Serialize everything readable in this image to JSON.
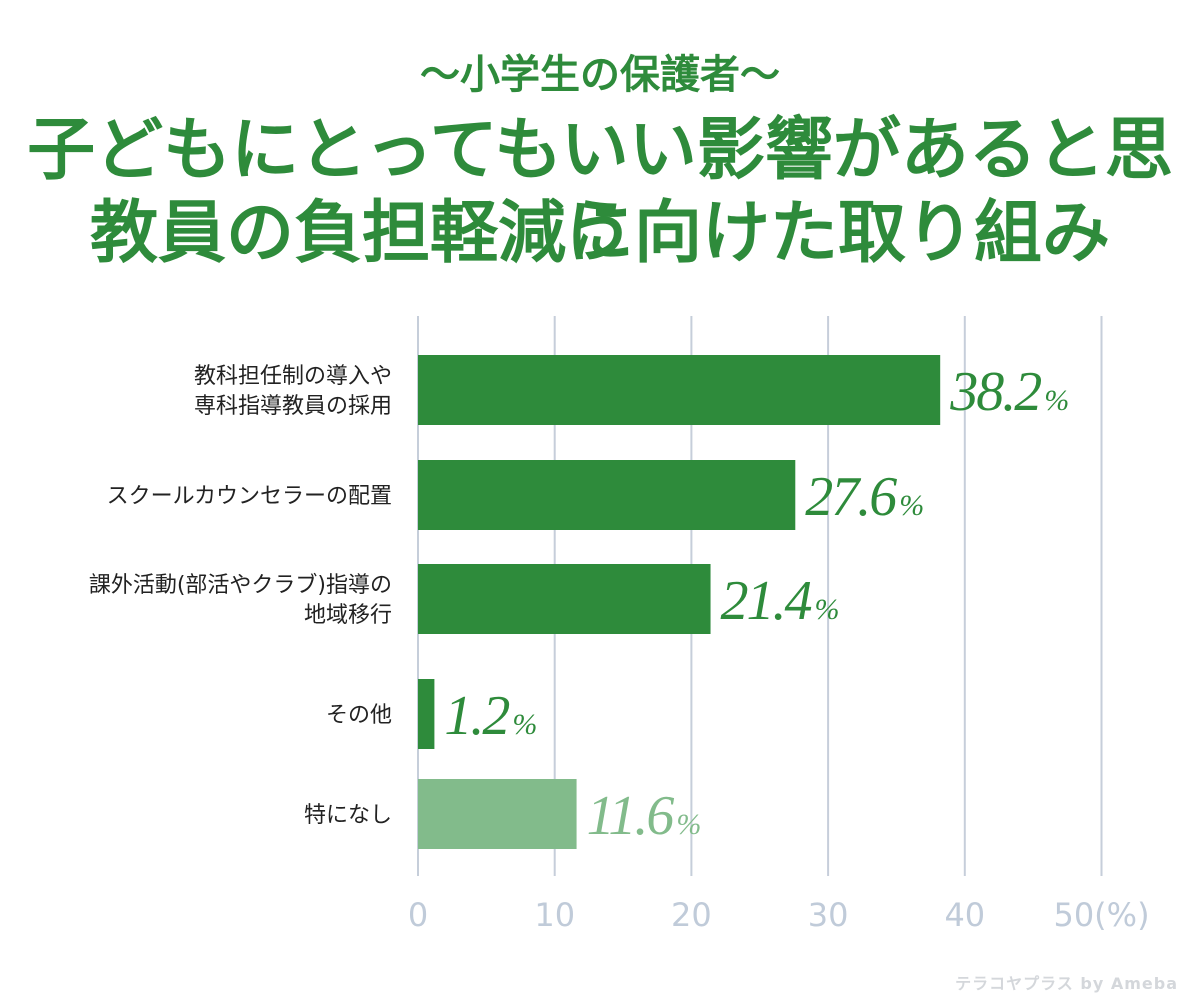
{
  "header": {
    "subtitle": "～小学生の保護者～",
    "title_line1": "子どもにとってもいい影響があると思う",
    "title_line2": "教員の負担軽減に向けた取り組み"
  },
  "colors": {
    "primary": "#2e8b3b",
    "muted": "#82bb8b",
    "grid": "#c6ceda",
    "tick": "#c0cbd9",
    "label": "#222222"
  },
  "chart_data": {
    "type": "bar",
    "orientation": "horizontal",
    "categories": [
      [
        "教科担任制の導入や",
        "専科指導教員の採用"
      ],
      [
        "スクールカウンセラーの配置"
      ],
      [
        "課外活動(部活やクラブ)指導の",
        "地域移行"
      ],
      [
        "その他"
      ],
      [
        "特になし"
      ]
    ],
    "values": [
      38.2,
      27.6,
      21.4,
      1.2,
      11.6
    ],
    "value_labels": [
      "38.2",
      "27.6",
      "21.4",
      "1.2",
      "11.6"
    ],
    "value_suffix": "%",
    "highlight": [
      true,
      true,
      true,
      true,
      false
    ],
    "xlim": [
      0,
      50
    ],
    "xticks": [
      "0",
      "10",
      "20",
      "30",
      "40",
      "50(%)"
    ],
    "xtick_values": [
      0,
      10,
      20,
      30,
      40,
      50
    ],
    "grid": true
  },
  "footer": {
    "watermark": "テラコヤプラス by Ameba"
  }
}
